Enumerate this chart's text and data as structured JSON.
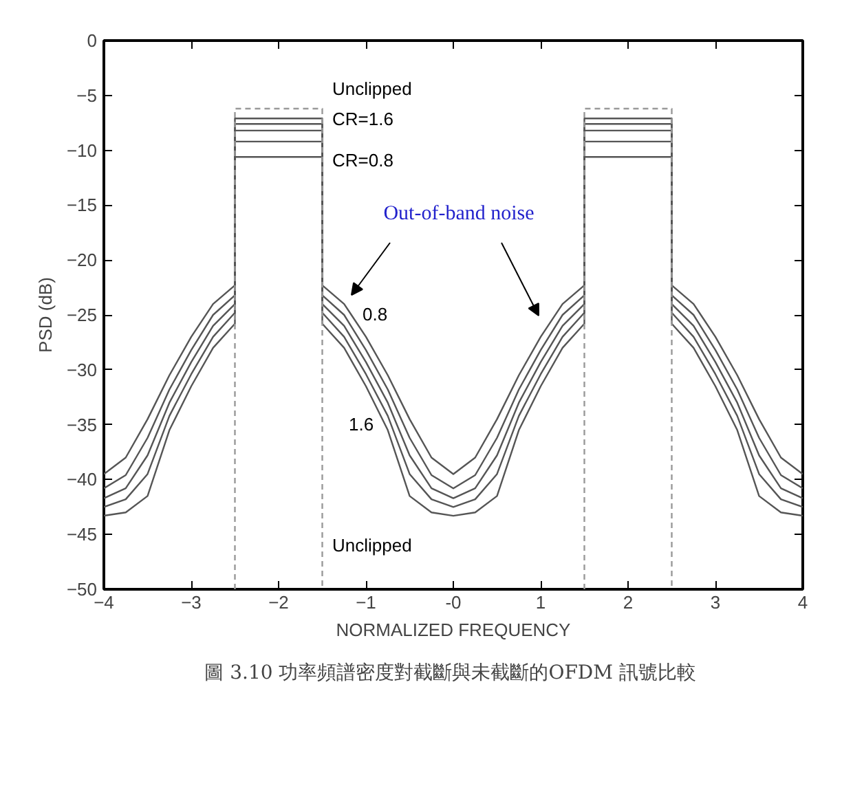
{
  "chart_data": {
    "type": "line",
    "title": "圖 3.10  功率頻譜密度對截斷與未截斷的OFDM 訊號比較",
    "xlabel": "NORMALIZED FREQUENCY",
    "ylabel": "PSD (dB)",
    "xlim": [
      -4,
      4
    ],
    "ylim": [
      -50,
      0
    ],
    "xticks": [
      -4,
      -3,
      -2,
      -1,
      {
        "value": 0,
        "label": "-0"
      },
      1,
      2,
      3,
      4
    ],
    "yticks": [
      0,
      -5,
      -10,
      -15,
      -20,
      -25,
      -30,
      -35,
      -40,
      -45,
      -50
    ],
    "grid": false,
    "marker": "none",
    "series": [
      {
        "color": "#555555",
        "line_style": "solid",
        "x": [
          -4,
          -3.75,
          -3.5,
          -3.25,
          -3,
          -2.75,
          -2.5,
          -2.5,
          -1.5,
          -1.5,
          -1.25,
          -1,
          -0.75,
          -0.5,
          -0.25,
          0,
          0.25,
          0.5,
          0.75,
          1,
          1.25,
          1.5,
          1.5,
          2.5,
          2.5,
          2.75,
          3,
          3.25,
          3.5,
          3.75,
          4
        ],
        "values": [
          -39.5,
          -38.0,
          -34.5,
          -30.5,
          -27.0,
          -24.0,
          -22.3,
          -10.6,
          -10.6,
          -22.3,
          -24.0,
          -27.0,
          -30.5,
          -34.5,
          -38.0,
          -39.5,
          -38.0,
          -34.5,
          -30.5,
          -27.0,
          -24.0,
          -22.3,
          -10.6,
          -10.6,
          -22.3,
          -24.0,
          -27.0,
          -30.5,
          -34.5,
          -38.0,
          -39.5
        ]
      },
      {
        "color": "#555555",
        "line_style": "solid",
        "x": [
          -4,
          -3.75,
          -3.5,
          -3.25,
          -3,
          -2.75,
          -2.5,
          -2.5,
          -1.5,
          -1.5,
          -1.25,
          -1,
          -0.75,
          -0.5,
          -0.25,
          0,
          0.25,
          0.5,
          0.75,
          1,
          1.25,
          1.5,
          1.5,
          2.5,
          2.5,
          2.75,
          3,
          3.25,
          3.5,
          3.75,
          4
        ],
        "values": [
          -40.8,
          -39.6,
          -36.2,
          -31.8,
          -28.2,
          -25.0,
          -23.2,
          -9.2,
          -9.2,
          -23.2,
          -25.0,
          -28.2,
          -31.8,
          -36.2,
          -39.6,
          -40.8,
          -39.6,
          -36.2,
          -31.8,
          -28.2,
          -25.0,
          -23.2,
          -9.2,
          -9.2,
          -23.2,
          -25.0,
          -28.2,
          -31.8,
          -36.2,
          -39.6,
          -40.8
        ]
      },
      {
        "color": "#555555",
        "line_style": "solid",
        "x": [
          -4,
          -3.75,
          -3.5,
          -3.25,
          -3,
          -2.75,
          -2.5,
          -2.5,
          -1.5,
          -1.5,
          -1.25,
          -1,
          -0.75,
          -0.5,
          -0.25,
          0,
          0.25,
          0.5,
          0.75,
          1,
          1.25,
          1.5,
          1.5,
          2.5,
          2.5,
          2.75,
          3,
          3.25,
          3.5,
          3.75,
          4
        ],
        "values": [
          -41.7,
          -40.8,
          -37.8,
          -33.0,
          -29.3,
          -26.0,
          -24.0,
          -8.2,
          -8.2,
          -24.0,
          -26.0,
          -29.3,
          -33.0,
          -37.8,
          -40.8,
          -41.7,
          -40.8,
          -37.8,
          -33.0,
          -29.3,
          -26.0,
          -24.0,
          -8.2,
          -8.2,
          -24.0,
          -26.0,
          -29.3,
          -33.0,
          -37.8,
          -40.8,
          -41.7
        ]
      },
      {
        "color": "#555555",
        "line_style": "solid",
        "x": [
          -4,
          -3.75,
          -3.5,
          -3.25,
          -3,
          -2.75,
          -2.5,
          -2.5,
          -1.5,
          -1.5,
          -1.25,
          -1,
          -0.75,
          -0.5,
          -0.25,
          0,
          0.25,
          0.5,
          0.75,
          1,
          1.25,
          1.5,
          1.5,
          2.5,
          2.5,
          2.75,
          3,
          3.25,
          3.5,
          3.75,
          4
        ],
        "values": [
          -42.5,
          -41.8,
          -39.5,
          -34.2,
          -30.4,
          -27.0,
          -24.8,
          -7.6,
          -7.6,
          -24.8,
          -27.0,
          -30.4,
          -34.2,
          -39.5,
          -41.8,
          -42.5,
          -41.8,
          -39.5,
          -34.2,
          -30.4,
          -27.0,
          -24.8,
          -7.6,
          -7.6,
          -24.8,
          -27.0,
          -30.4,
          -34.2,
          -39.5,
          -41.8,
          -42.5
        ]
      },
      {
        "color": "#555555",
        "line_style": "solid",
        "x": [
          -4,
          -3.75,
          -3.5,
          -3.25,
          -3,
          -2.75,
          -2.5,
          -2.5,
          -1.5,
          -1.5,
          -1.25,
          -1,
          -0.75,
          -0.5,
          -0.25,
          0,
          0.25,
          0.5,
          0.75,
          1,
          1.25,
          1.5,
          1.5,
          2.5,
          2.5,
          2.75,
          3,
          3.25,
          3.5,
          3.75,
          4
        ],
        "values": [
          -43.3,
          -43.0,
          -41.5,
          -35.5,
          -31.5,
          -28.0,
          -25.8,
          -7.1,
          -7.1,
          -25.8,
          -28.0,
          -31.5,
          -35.5,
          -41.5,
          -43.0,
          -43.3,
          -43.0,
          -41.5,
          -35.5,
          -31.5,
          -28.0,
          -25.8,
          -7.1,
          -7.1,
          -25.8,
          -28.0,
          -31.5,
          -35.5,
          -41.5,
          -43.0,
          -43.3
        ]
      },
      {
        "color": "#999999",
        "line_style": "dashed",
        "x": [
          -2.5,
          -2.5,
          -1.5,
          -1.5,
          0,
          1.5,
          1.5,
          2.5,
          2.5
        ],
        "values": [
          -50,
          -6.2,
          -6.2,
          -50,
          null,
          -50,
          -6.2,
          -6.2,
          -50
        ]
      }
    ],
    "annotations": [
      "Unclipped",
      "CR=1.6",
      "CR=0.8",
      "0.8",
      "1.6",
      "Unclipped",
      "Out-of-band noise"
    ]
  }
}
